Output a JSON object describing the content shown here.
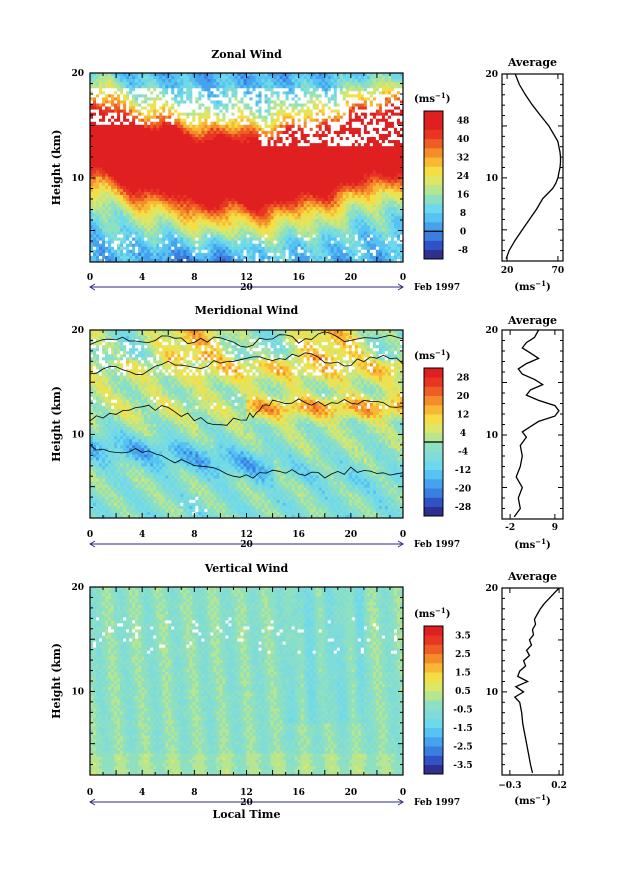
{
  "chart_data": [
    {
      "type": "heatmap",
      "title": "Zonal Wind",
      "ylabel": "Height (km)",
      "xlabel": "",
      "x_ticks": [
        "0",
        "4",
        "8",
        "12",
        "16",
        "20",
        "0"
      ],
      "y_ticks": [
        "20",
        "10"
      ],
      "xlim": [
        0,
        24
      ],
      "ylim": [
        2,
        20
      ],
      "date_marker": "20",
      "date_label": "Feb 1997",
      "colorbar": {
        "unit_label": "(ms",
        "unit_exp": "−1",
        "unit_close": ")",
        "tick_labels": [
          "48",
          "40",
          "32",
          "24",
          "16",
          "8",
          "0",
          "-8"
        ],
        "levels": [
          -12,
          -8,
          -4,
          0,
          4,
          8,
          12,
          16,
          20,
          24,
          28,
          32,
          36,
          40,
          44,
          48,
          52
        ],
        "colors": [
          "#2e2f8f",
          "#3152c4",
          "#3a7ee2",
          "#45a2ee",
          "#56c3f2",
          "#6fd9ec",
          "#8fe0c0",
          "#b8e690",
          "#dde667",
          "#f5de45",
          "#f8b833",
          "#f48c2a",
          "#ee5d25",
          "#e83524",
          "#e02020",
          "#e02020"
        ],
        "zero_line": true
      },
      "average": {
        "title": "Average",
        "unit_label": "(ms",
        "unit_exp": "−1",
        "unit_close": ")",
        "x_ticks": [
          "20",
          "70"
        ],
        "xlim": [
          15,
          75
        ],
        "y_ticks": [
          "20",
          "10"
        ],
        "ylim": [
          2,
          20
        ],
        "profile_height_km": [
          2.2,
          3,
          4,
          5,
          6,
          7,
          8,
          8.5,
          9,
          9.5,
          10,
          10.5,
          11,
          11.5,
          12,
          12.5,
          13,
          13.5,
          14,
          15,
          16,
          17,
          18,
          19,
          20
        ],
        "profile_value": [
          19,
          22,
          28,
          35,
          42,
          49,
          55,
          60,
          65,
          68,
          70,
          71,
          72,
          72.5,
          72.5,
          72,
          71,
          70,
          67,
          61,
          53,
          45,
          38,
          32,
          28
        ]
      }
    },
    {
      "type": "heatmap",
      "title": "Meridional Wind",
      "ylabel": "Height (km)",
      "xlabel": "",
      "x_ticks": [
        "0",
        "4",
        "8",
        "12",
        "16",
        "20",
        "0"
      ],
      "y_ticks": [
        "20",
        "10"
      ],
      "xlim": [
        0,
        24
      ],
      "ylim": [
        2,
        20
      ],
      "date_marker": "20",
      "date_label": "Feb 1997",
      "colorbar": {
        "unit_label": "(ms",
        "unit_exp": "−1",
        "unit_close": ")",
        "tick_labels": [
          "28",
          "20",
          "12",
          "4",
          "-4",
          "-12",
          "-20",
          "-28"
        ],
        "levels": [
          -32,
          -28,
          -24,
          -20,
          -16,
          -12,
          -8,
          -4,
          0,
          4,
          8,
          12,
          16,
          20,
          24,
          28,
          32
        ],
        "colors": [
          "#2e2f8f",
          "#3152c4",
          "#3a7ee2",
          "#45a2ee",
          "#56c3f2",
          "#6fd9ec",
          "#7fdcd8",
          "#8fe0c0",
          "#b8e690",
          "#dde667",
          "#f5de45",
          "#f8b833",
          "#f48c2a",
          "#ee5d25",
          "#e83524",
          "#e02020"
        ],
        "zero_line": true
      },
      "average": {
        "title": "Average",
        "unit_label": "(ms",
        "unit_exp": "−1",
        "unit_close": ")",
        "x_ticks": [
          "-2",
          "9"
        ],
        "xlim": [
          -4,
          11
        ],
        "y_ticks": [
          "20",
          "10"
        ],
        "ylim": [
          2,
          20
        ],
        "profile_height_km": [
          2.2,
          3,
          4,
          5,
          6,
          7,
          8,
          9,
          9.8,
          10.3,
          10.8,
          11.3,
          11.8,
          12.3,
          12.8,
          13.3,
          13.8,
          14.3,
          14.8,
          15.3,
          15.8,
          16.3,
          16.8,
          17.3,
          17.8,
          18.3,
          18.8,
          19.3,
          20
        ],
        "profile_value": [
          -1,
          0.5,
          0,
          1,
          -0.5,
          0.5,
          1,
          0.5,
          2,
          1,
          3,
          5,
          9,
          10,
          9,
          5,
          2,
          3,
          6,
          4,
          1,
          0,
          2,
          5,
          3,
          1,
          2,
          4,
          5
        ]
      }
    },
    {
      "type": "heatmap",
      "title": "Vertical Wind",
      "ylabel": "Height (km)",
      "xlabel": "Local Time",
      "x_ticks": [
        "0",
        "4",
        "8",
        "12",
        "16",
        "20",
        "0"
      ],
      "y_ticks": [
        "20",
        "10"
      ],
      "xlim": [
        0,
        24
      ],
      "ylim": [
        2,
        20
      ],
      "date_marker": "20",
      "date_label": "Feb 1997",
      "colorbar": {
        "unit_label": "(ms",
        "unit_exp": "−1",
        "unit_close": ")",
        "tick_labels": [
          "3.5",
          "2.5",
          "1.5",
          "0.5",
          "-0.5",
          "-1.5",
          "-2.5",
          "-3.5"
        ],
        "levels": [
          -4,
          -3.5,
          -3,
          -2.5,
          -2,
          -1.5,
          -1,
          -0.5,
          0,
          0.5,
          1,
          1.5,
          2,
          2.5,
          3,
          3.5,
          4
        ],
        "colors": [
          "#2e2f8f",
          "#3152c4",
          "#3a7ee2",
          "#45a2ee",
          "#56c3f2",
          "#6fd9ec",
          "#7fdcd8",
          "#8fe0c0",
          "#b8e690",
          "#dde667",
          "#f5de45",
          "#f8b833",
          "#f48c2a",
          "#ee5d25",
          "#e83524",
          "#e02020"
        ],
        "zero_line": false
      },
      "average": {
        "title": "Average",
        "unit_label": "(ms",
        "unit_exp": "−1",
        "unit_close": ")",
        "x_ticks": [
          "−0.3",
          "0.2"
        ],
        "xlim": [
          -0.38,
          0.24
        ],
        "y_ticks": [
          "20",
          "10"
        ],
        "ylim": [
          2,
          20
        ],
        "profile_height_km": [
          2.2,
          3,
          4,
          5,
          6,
          7,
          8,
          9,
          9.5,
          10,
          10.5,
          11,
          11.5,
          12,
          12.5,
          13,
          13.5,
          14,
          14.5,
          15,
          15.5,
          16,
          16.5,
          17,
          17.5,
          18,
          18.5,
          19,
          19.5,
          20
        ],
        "profile_value": [
          -0.07,
          -0.09,
          -0.11,
          -0.13,
          -0.15,
          -0.17,
          -0.18,
          -0.2,
          -0.25,
          -0.16,
          -0.24,
          -0.12,
          -0.22,
          -0.2,
          -0.14,
          -0.16,
          -0.1,
          -0.13,
          -0.08,
          -0.1,
          -0.06,
          -0.07,
          -0.04,
          -0.05,
          -0.02,
          0.01,
          0.05,
          0.1,
          0.15,
          0.2
        ]
      }
    }
  ]
}
